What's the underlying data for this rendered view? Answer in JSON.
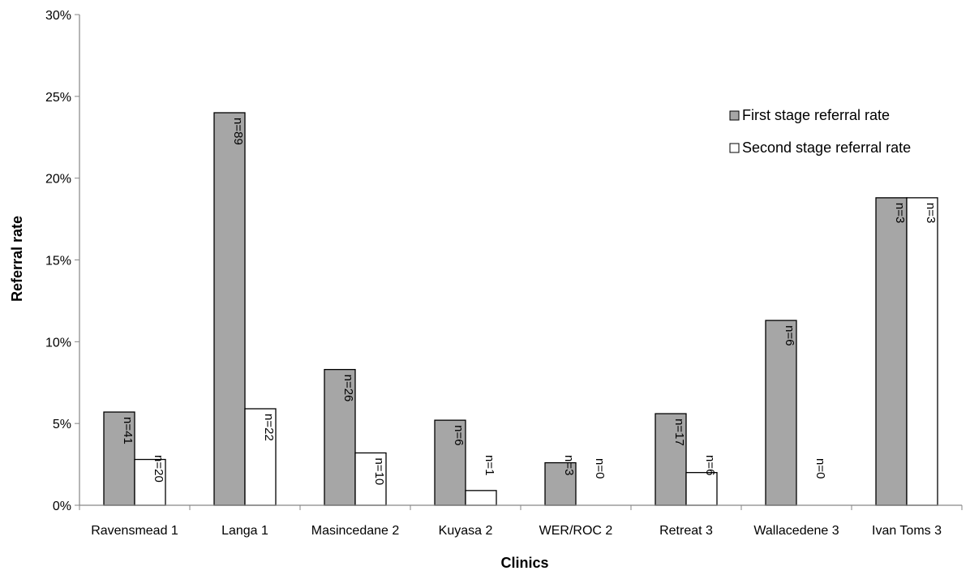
{
  "chart_data": {
    "type": "bar",
    "xlabel": "Clinics",
    "ylabel": "Referral rate",
    "ylim": [
      0,
      0.3
    ],
    "yticks": [
      "0%",
      "5%",
      "10%",
      "15%",
      "20%",
      "25%",
      "30%"
    ],
    "grid": false,
    "legend_position": "top-right",
    "categories": [
      "Ravensmead 1",
      "Langa 1",
      "Masincedane 2",
      "Kuyasa 2",
      "WER/ROC 2",
      "Retreat 3",
      "Wallacedene 3",
      "Ivan Toms 3"
    ],
    "series": [
      {
        "name": "First stage referral rate",
        "color": "#a6a6a6",
        "values": [
          0.057,
          0.24,
          0.083,
          0.052,
          0.026,
          0.056,
          0.113,
          0.188
        ],
        "labels": [
          "n=41",
          "n=89",
          "n=26",
          "n=6",
          "n=3",
          "n=17",
          "n=6",
          "n=3"
        ]
      },
      {
        "name": "Second stage referral rate",
        "color": "#ffffff",
        "values": [
          0.028,
          0.059,
          0.032,
          0.009,
          0.0,
          0.02,
          0.0,
          0.188
        ],
        "labels": [
          "n=20",
          "n=22",
          "n=10",
          "n=1",
          "n=0",
          "n=6",
          "n=0",
          "n=3"
        ]
      }
    ]
  }
}
